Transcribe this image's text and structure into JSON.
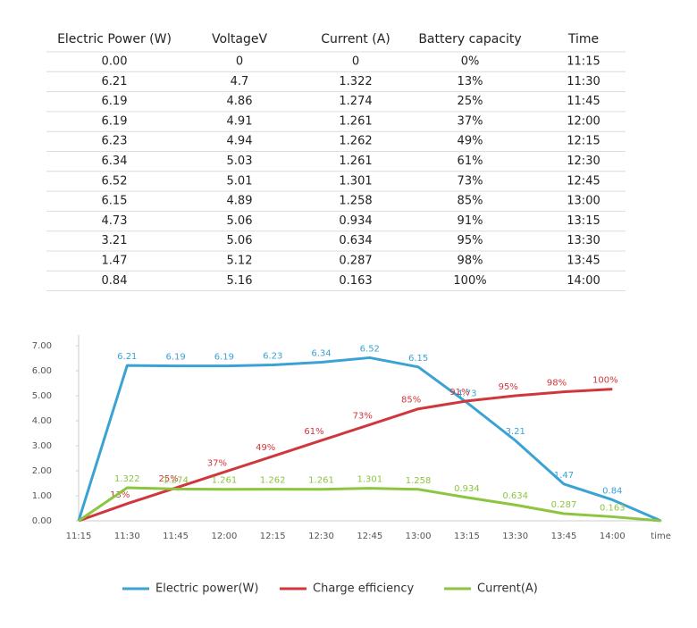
{
  "table": {
    "headers": [
      "Electric Power (W)",
      "VoltageV",
      "Current (A)",
      "Battery capacity",
      "Time"
    ],
    "rows": [
      [
        "0.00",
        "0",
        "0",
        "0%",
        "11:15"
      ],
      [
        "6.21",
        "4.7",
        "1.322",
        "13%",
        "11:30"
      ],
      [
        "6.19",
        "4.86",
        "1.274",
        "25%",
        "11:45"
      ],
      [
        "6.19",
        "4.91",
        "1.261",
        "37%",
        "12:00"
      ],
      [
        "6.23",
        "4.94",
        "1.262",
        "49%",
        "12:15"
      ],
      [
        "6.34",
        "5.03",
        "1.261",
        "61%",
        "12:30"
      ],
      [
        "6.52",
        "5.01",
        "1.301",
        "73%",
        "12:45"
      ],
      [
        "6.15",
        "4.89",
        "1.258",
        "85%",
        "13:00"
      ],
      [
        "4.73",
        "5.06",
        "0.934",
        "91%",
        "13:15"
      ],
      [
        "3.21",
        "5.06",
        "0.634",
        "95%",
        "13:30"
      ],
      [
        "1.47",
        "5.12",
        "0.287",
        "98%",
        "13:45"
      ],
      [
        "0.84",
        "5.16",
        "0.163",
        "100%",
        "14:00"
      ]
    ]
  },
  "chart_data": {
    "type": "line",
    "categories": [
      "11:15",
      "11:30",
      "11:45",
      "12:00",
      "12:15",
      "12:30",
      "12:45",
      "13:00",
      "13:15",
      "13:30",
      "13:45",
      "14:00",
      "time"
    ],
    "ylim": [
      0,
      7
    ],
    "yticks": [
      {
        "value": 0,
        "label": "0.00"
      },
      {
        "value": 1,
        "label": "1.00"
      },
      {
        "value": 2,
        "label": "2.00"
      },
      {
        "value": 3,
        "label": "3.00"
      },
      {
        "value": 4,
        "label": "4.00"
      },
      {
        "value": 5,
        "label": "5.00"
      },
      {
        "value": 6,
        "label": "6.00"
      },
      {
        "value": 7,
        "label": "7.00"
      }
    ],
    "y2lim": [
      0,
      133
    ],
    "legend": "bottom",
    "series": [
      {
        "name": "Electric power(W)",
        "color": "#3aa3d4",
        "values": [
          0,
          6.21,
          6.19,
          6.19,
          6.23,
          6.34,
          6.52,
          6.15,
          4.73,
          3.21,
          1.47,
          0.84,
          0
        ],
        "value_labels": [
          null,
          "6.21",
          "6.19",
          "6.19",
          "6.23",
          "6.34",
          "6.52",
          "6.15",
          "4.73",
          "3.21",
          "1.47",
          "0.84",
          null
        ]
      },
      {
        "name": "Charge efficiency",
        "color": "#d0373c",
        "axis": "y2",
        "values": [
          0,
          13,
          25,
          37,
          49,
          61,
          73,
          85,
          91,
          95,
          98,
          100,
          null
        ],
        "value_labels": [
          null,
          "13%",
          "25%",
          "37%",
          "49%",
          "61%",
          "73%",
          "85%",
          "91%",
          "95%",
          "98%",
          "100%",
          null
        ]
      },
      {
        "name": "Current(A)",
        "color": "#8cc540",
        "values": [
          0,
          1.322,
          1.274,
          1.261,
          1.262,
          1.261,
          1.301,
          1.258,
          0.934,
          0.634,
          0.287,
          0.163,
          0
        ],
        "value_labels": [
          null,
          "1.322",
          "1.274",
          "1.261",
          "1.262",
          "1.261",
          "1.301",
          "1.258",
          "0.934",
          "0.634",
          "0.287",
          "0.163",
          null
        ]
      }
    ]
  }
}
